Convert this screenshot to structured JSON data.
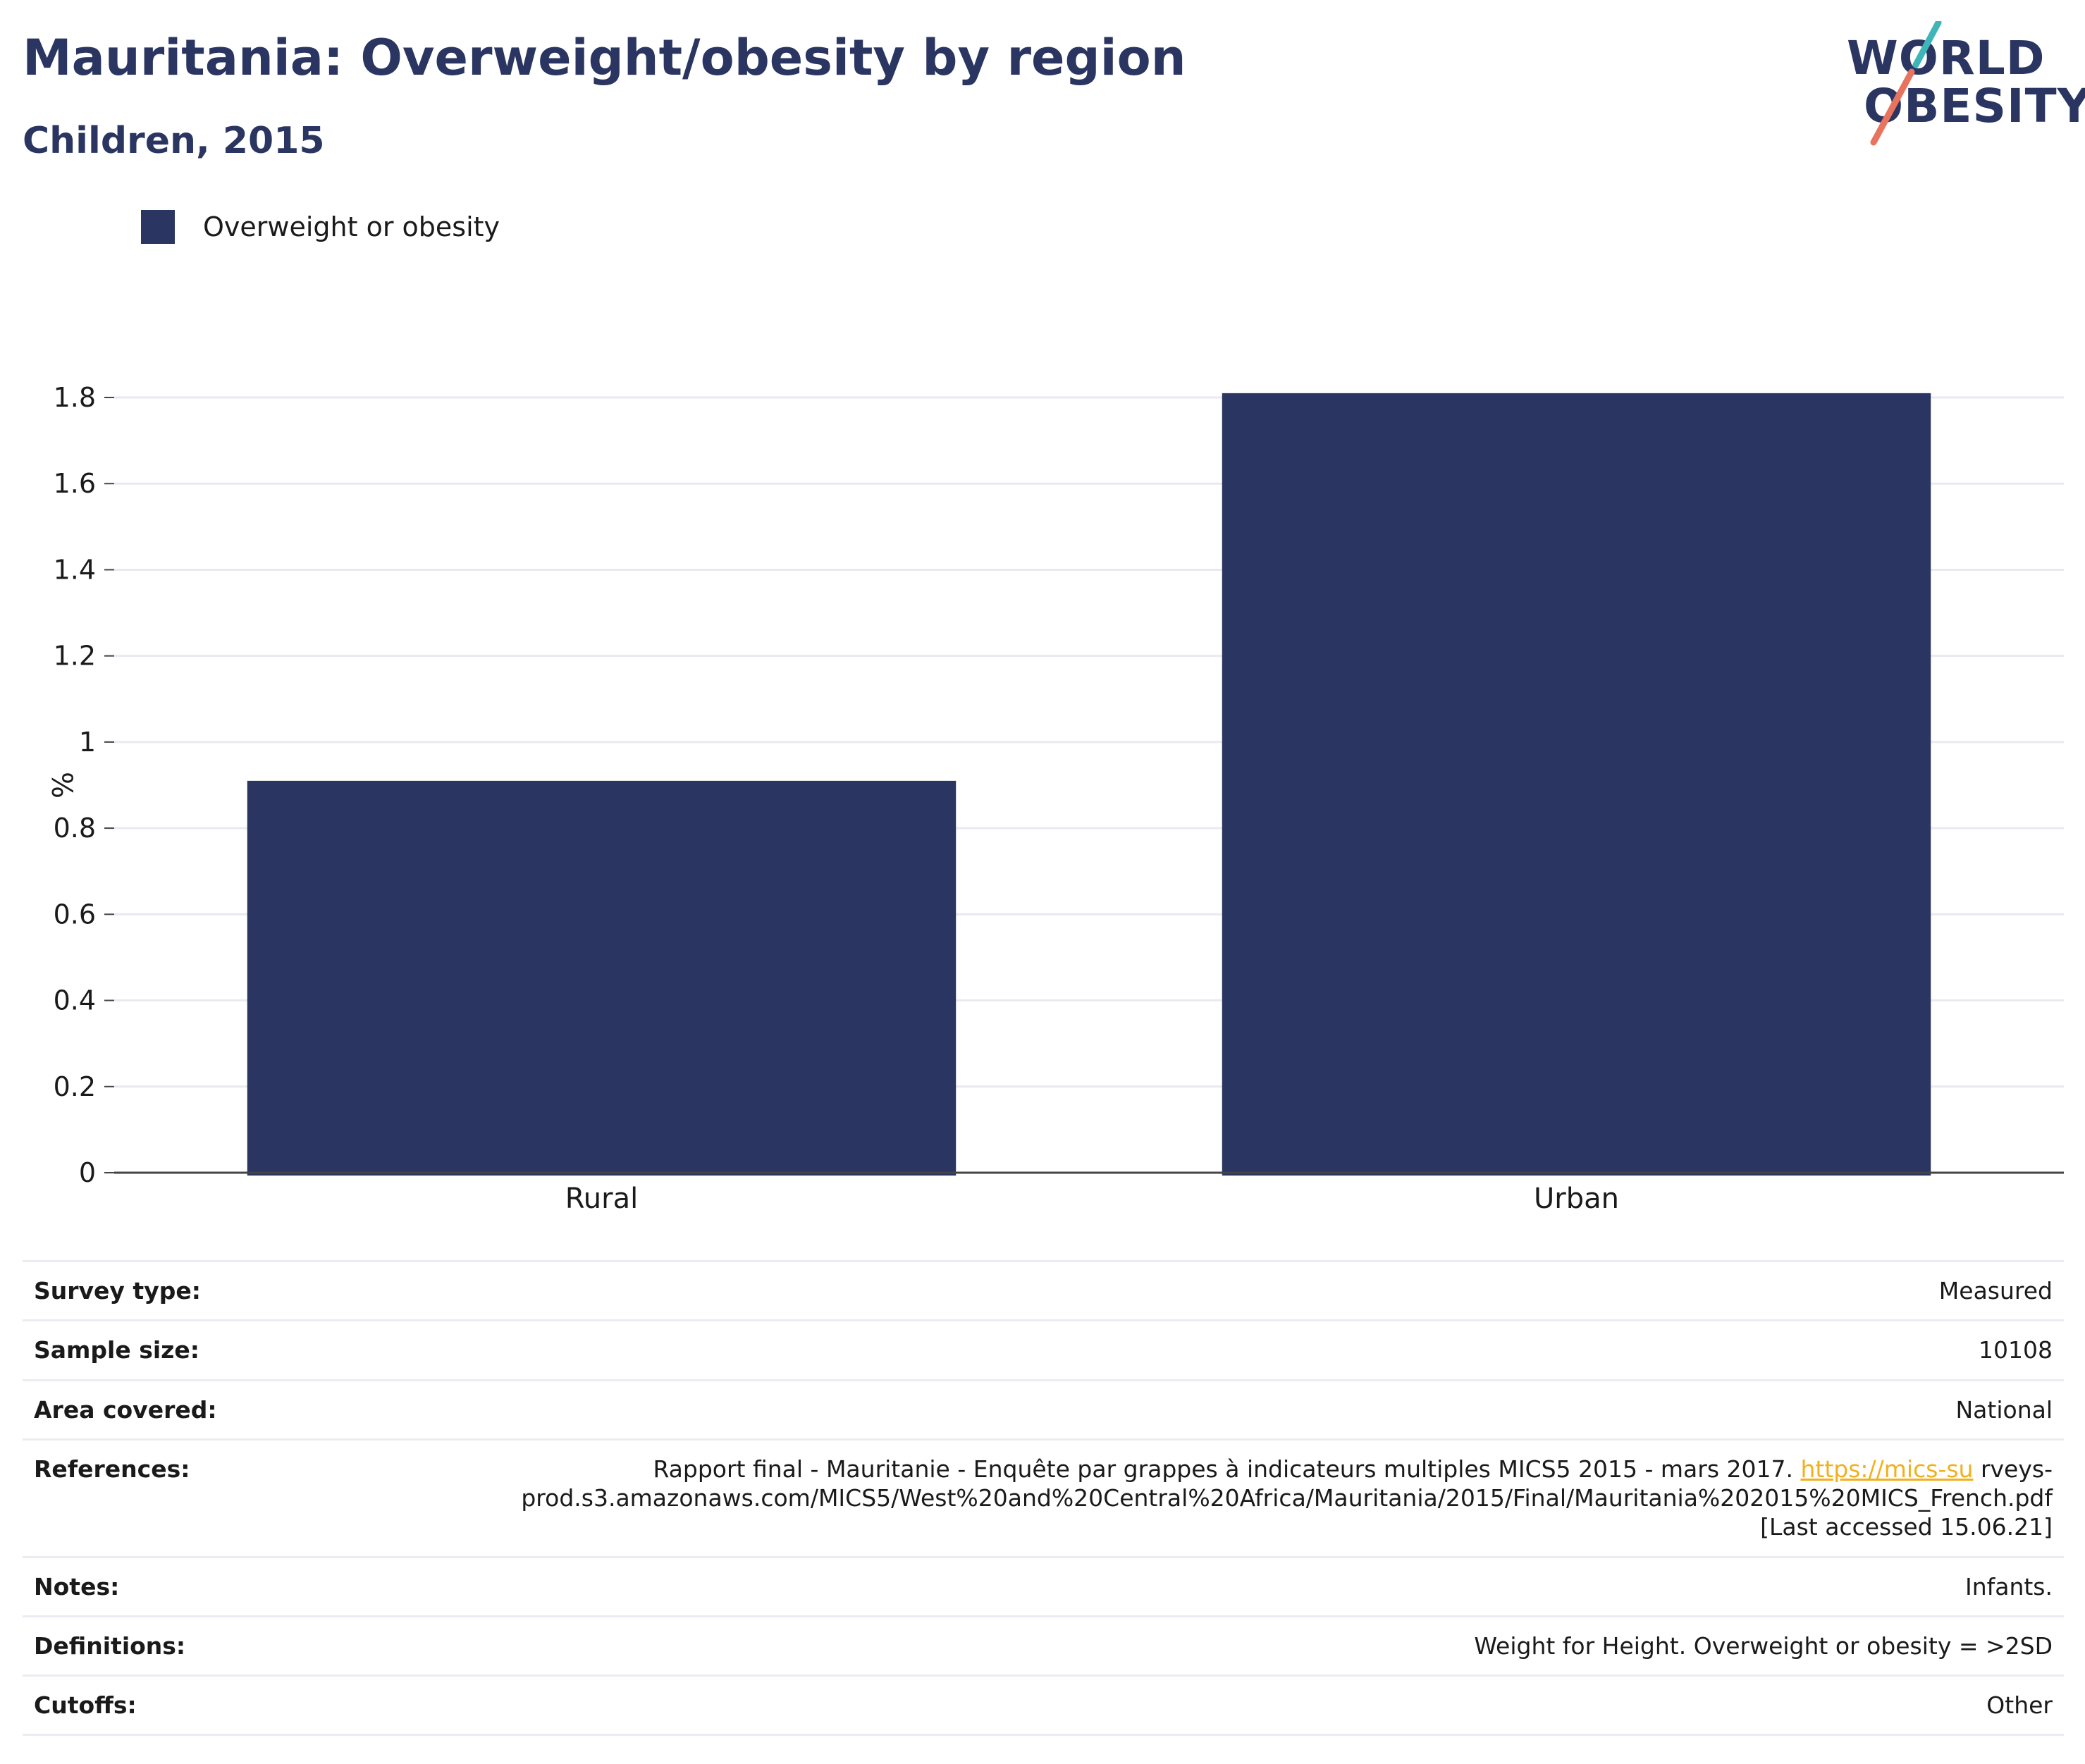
{
  "header": {
    "title": "Mauritania: Overweight/obesity by region",
    "subtitle": "Children, 2015"
  },
  "logo": {
    "line1": "WORLD",
    "line2": "OBESITY",
    "colors": {
      "text": "#2a3661",
      "slash_top": "#3fb5b8",
      "slash_bottom": "#e8735f"
    }
  },
  "legend": {
    "items": [
      {
        "label": "Overweight or obesity",
        "color": "#2a3661"
      }
    ]
  },
  "chart_data": {
    "type": "bar",
    "categories": [
      "Rural",
      "Urban"
    ],
    "series": [
      {
        "name": "Overweight or obesity",
        "values": [
          0.91,
          1.81
        ],
        "color": "#2a3661"
      }
    ],
    "ylabel": "%",
    "xlabel": "",
    "ylim": [
      0,
      1.8
    ],
    "yticks": [
      "0",
      "0.2",
      "0.4",
      "0.6",
      "0.8",
      "1",
      "1.2",
      "1.4",
      "1.6",
      "1.8"
    ],
    "grid": true
  },
  "info_table": {
    "survey_type": {
      "label": "Survey type:",
      "value": "Measured"
    },
    "sample_size": {
      "label": "Sample size:",
      "value": "10108"
    },
    "area_covered": {
      "label": "Area covered:",
      "value": "National"
    },
    "references": {
      "label": "References:",
      "text_before": "Rapport final - Mauritanie - Enquête par grappes à indicateurs multiples MICS5 2015 - mars 2017. ",
      "link_text": "https://mics-su",
      "text_after": " rveys-",
      "line2": "prod.s3.amazonaws.com/MICS5/West%20and%20Central%20Africa/Mauritania/2015/Final/Mauritania%202015%20MICS_French.pdf",
      "line3": "[Last accessed 15.06.21]"
    },
    "notes": {
      "label": "Notes:",
      "value": "Infants."
    },
    "definitions": {
      "label": "Definitions:",
      "value": "Weight for Height. Overweight or obesity = >2SD"
    },
    "cutoffs": {
      "label": "Cutoffs:",
      "value": "Other"
    }
  }
}
